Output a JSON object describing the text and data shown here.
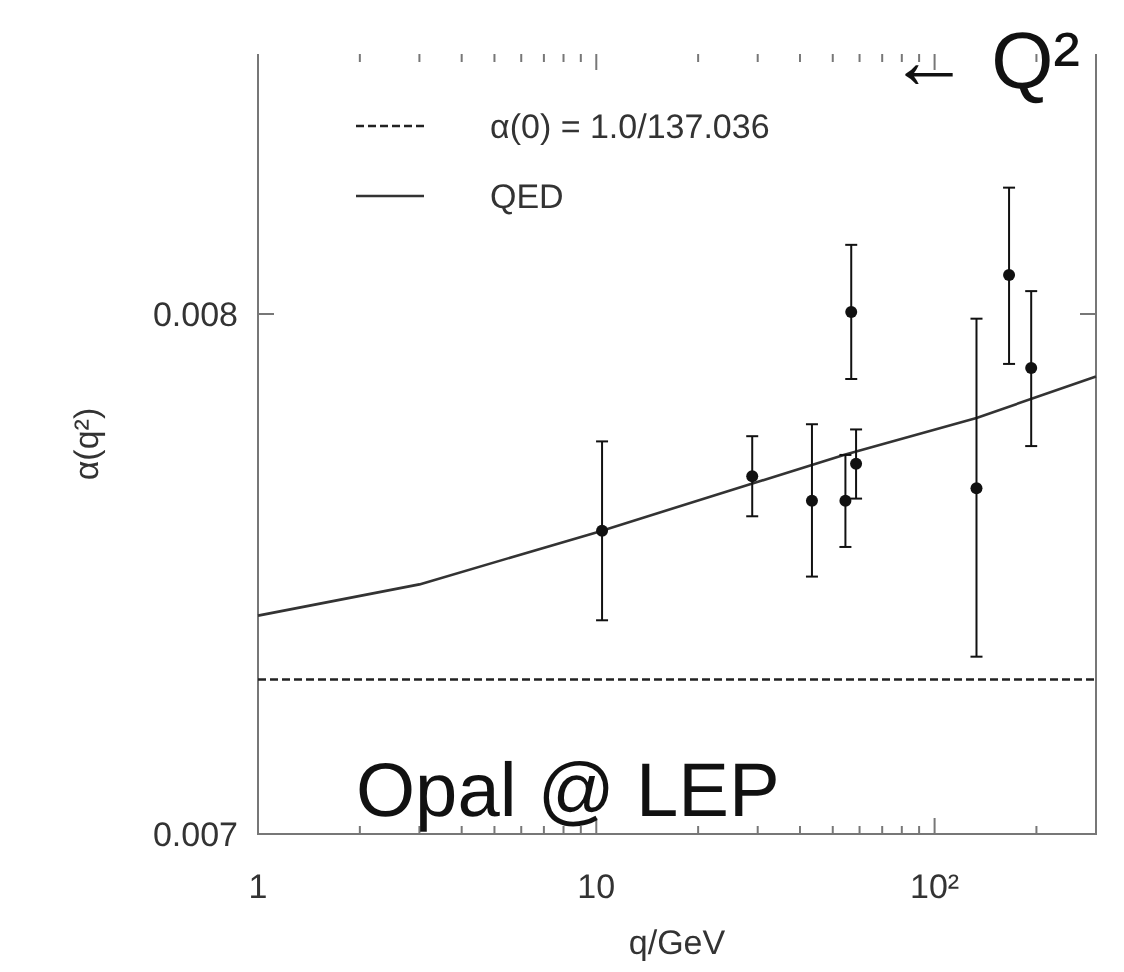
{
  "chart_data": {
    "type": "scatter",
    "xlabel": "q/GeV",
    "ylabel": "α(q²)",
    "log": "x",
    "xlim": [
      1,
      300
    ],
    "ylim": [
      0.007,
      0.0085
    ],
    "xticks": [
      1,
      {
        "value": 2,
        "label": null
      },
      {
        "value": 3,
        "label": null
      },
      {
        "value": 4,
        "label": null
      },
      {
        "value": 5,
        "label": null
      },
      {
        "value": 6,
        "label": null
      },
      {
        "value": 7,
        "label": null
      },
      {
        "value": 8,
        "label": null
      },
      {
        "value": 9,
        "label": null
      },
      10,
      {
        "value": 20,
        "label": null
      },
      {
        "value": 30,
        "label": null
      },
      {
        "value": 40,
        "label": null
      },
      {
        "value": 50,
        "label": null
      },
      {
        "value": 60,
        "label": null
      },
      {
        "value": 70,
        "label": null
      },
      {
        "value": 80,
        "label": null
      },
      {
        "value": 90,
        "label": null
      },
      {
        "value": 100,
        "label": "10²"
      },
      {
        "value": 200,
        "label": null
      }
    ],
    "yticks": [
      0.007,
      0.008
    ],
    "grid": false,
    "legend": "top",
    "annotations": [
      "← Q²",
      "Opal @ LEP"
    ],
    "series": [
      {
        "type": "line",
        "name": "α(0) = 1.0/137.036",
        "color": "#222222",
        "line_style": "dashed",
        "marker": "none",
        "x": [
          1,
          300
        ],
        "values": [
          0.007297,
          0.007297
        ]
      },
      {
        "type": "line",
        "name": "QED",
        "color": "#333333",
        "line_style": "solid",
        "marker": "none",
        "x": [
          1,
          3,
          10,
          54.5,
          133,
          300
        ],
        "values": [
          0.00742,
          0.00748,
          0.00758,
          0.00773,
          0.0078,
          0.00788
        ]
      },
      {
        "marker": "circle",
        "color": "#111111",
        "x": [
          10.4,
          28.9,
          43.4,
          54.5,
          56.7,
          58.6,
          133,
          166,
          193
        ],
        "values": [
          0.007583,
          0.007688,
          0.007641,
          0.007641,
          0.008004,
          0.007712,
          0.007665,
          0.008075,
          0.007896
        ],
        "errors": [
          [
            0.007411,
            0.007755
          ],
          [
            0.007611,
            0.007765
          ],
          [
            0.007495,
            0.007788
          ],
          [
            0.007552,
            0.007729
          ],
          [
            0.007875,
            0.008133
          ],
          [
            0.007645,
            0.007778
          ],
          [
            0.007341,
            0.007991
          ],
          [
            0.007904,
            0.008243
          ],
          [
            0.007746,
            0.008044
          ]
        ]
      }
    ]
  }
}
